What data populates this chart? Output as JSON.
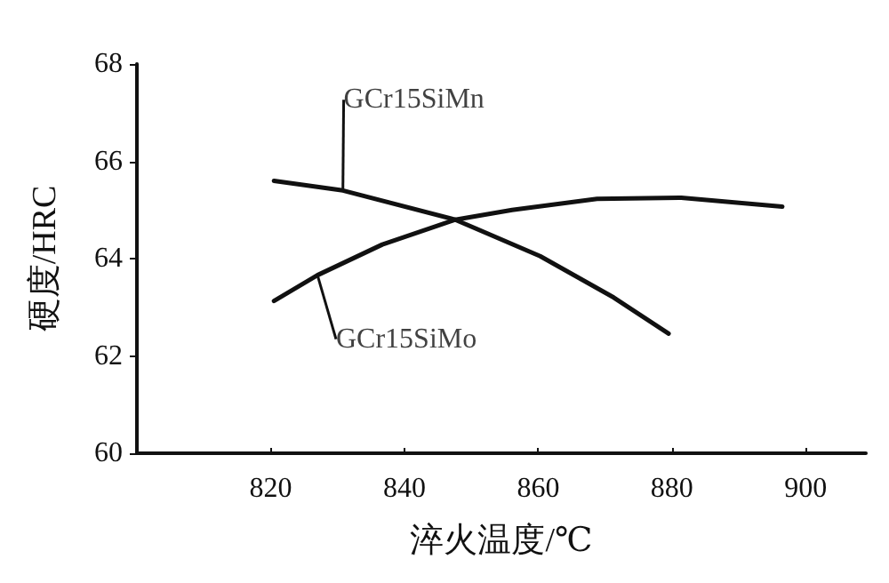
{
  "chart_data": {
    "type": "line",
    "xlabel": "淬火温度/℃",
    "ylabel": "硬度/HRC",
    "xlim": [
      800,
      909
    ],
    "xticks": [
      820,
      840,
      860,
      880,
      900
    ],
    "ylim": [
      60,
      68
    ],
    "yticks": [
      60,
      62,
      64,
      66,
      68
    ],
    "grid": false,
    "marker": "none",
    "line_style": "solid",
    "series": [
      {
        "color": "#111111",
        "x": [
          820.5,
          830.8,
          847.6,
          860.3,
          871.3,
          879.5
        ],
        "values": [
          65.6,
          65.4,
          64.8,
          64.05,
          63.2,
          62.46
        ]
      },
      {
        "color": "#111111",
        "x": [
          820.5,
          827,
          836.7,
          847.6,
          856.1,
          868.8,
          881.4,
          896.5
        ],
        "values": [
          63.13,
          63.66,
          64.29,
          64.8,
          65.0,
          65.23,
          65.25,
          65.07
        ]
      }
    ],
    "annotations": [
      {
        "text": "GCr15SiMn",
        "x": 830.8,
        "y": 65.4
      },
      {
        "text": "GCr15SiMo",
        "x": 827,
        "y": 63.66
      }
    ]
  }
}
